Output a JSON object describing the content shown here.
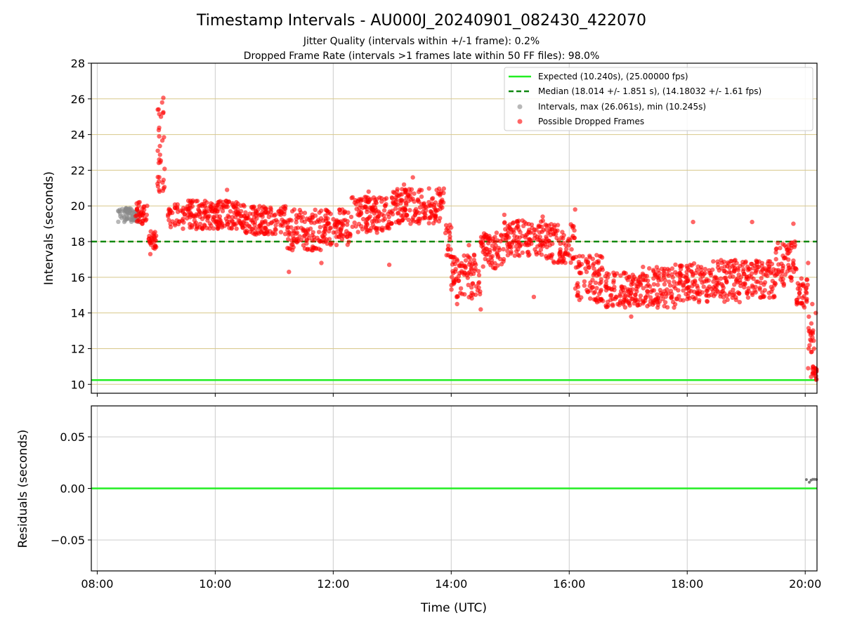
{
  "chart_data": [
    {
      "type": "scatter",
      "title": "Timestamp Intervals - AU000J_20240901_082430_422070",
      "subtitle_lines": [
        "Jitter Quality (intervals within +/-1 frame): 0.2%",
        "Dropped Frame Rate (intervals >1 frames late within 50 FF files): 98.0%"
      ],
      "xlabel": "",
      "ylabel": "Intervals (seconds)",
      "x_unit": "hours UTC",
      "xlim": [
        7.9,
        20.2
      ],
      "ylim": [
        9.5,
        28
      ],
      "yticks": [
        10,
        12,
        14,
        16,
        18,
        20,
        22,
        24,
        26,
        28
      ],
      "ytick_labels": [
        "10",
        "12",
        "14",
        "16",
        "18",
        "20",
        "22",
        "24",
        "26",
        "28"
      ],
      "grid": {
        "x": "gray",
        "y": "khaki"
      },
      "legend_placement": "top-right",
      "reference_lines": [
        {
          "name": "Expected (10.240s), (25.00000 fps)",
          "y": 10.24,
          "color": "#22ee22",
          "style": "solid"
        },
        {
          "name": "Median (18.014 +/- 1.851 s), (14.18032 +/- 1.61 fps)",
          "y": 18.0,
          "color": "#118811",
          "style": "dashed"
        }
      ],
      "series": [
        {
          "name": "Intervals, max (26.061s), min (10.245s)",
          "color": "#888888",
          "band_segments": [
            {
              "x": [
                8.35,
                8.7
              ],
              "y": [
                19.1,
                19.9
              ]
            }
          ]
        },
        {
          "name": "Possible Dropped Frames",
          "color": "#ff0000",
          "band_segments": [
            {
              "x": [
                8.65,
                8.85
              ],
              "y": [
                19.0,
                20.3
              ]
            },
            {
              "x": [
                8.85,
                9.0
              ],
              "y": [
                17.6,
                18.6
              ]
            },
            {
              "x": [
                9.0,
                9.15
              ],
              "y": [
                20.5,
                26.0
              ]
            },
            {
              "x": [
                9.2,
                10.5
              ],
              "y": [
                18.7,
                20.3
              ]
            },
            {
              "x": [
                10.5,
                11.2
              ],
              "y": [
                18.4,
                20.0
              ]
            },
            {
              "x": [
                11.2,
                11.8
              ],
              "y": [
                17.5,
                19.8
              ]
            },
            {
              "x": [
                11.8,
                12.3
              ],
              "y": [
                17.8,
                19.8
              ]
            },
            {
              "x": [
                12.3,
                13.0
              ],
              "y": [
                18.5,
                20.5
              ]
            },
            {
              "x": [
                13.0,
                13.9
              ],
              "y": [
                19.0,
                21.0
              ]
            },
            {
              "x": [
                13.9,
                14.0
              ],
              "y": [
                17.0,
                19.0
              ]
            },
            {
              "x": [
                14.0,
                14.5
              ],
              "y": [
                14.8,
                17.3
              ]
            },
            {
              "x": [
                14.5,
                14.9
              ],
              "y": [
                16.5,
                18.5
              ]
            },
            {
              "x": [
                14.9,
                15.6
              ],
              "y": [
                17.2,
                19.2
              ]
            },
            {
              "x": [
                15.6,
                16.1
              ],
              "y": [
                16.8,
                19.0
              ]
            },
            {
              "x": [
                16.1,
                16.6
              ],
              "y": [
                14.6,
                17.4
              ]
            },
            {
              "x": [
                16.6,
                17.2
              ],
              "y": [
                14.3,
                16.3
              ]
            },
            {
              "x": [
                17.2,
                17.8
              ],
              "y": [
                14.3,
                16.6
              ]
            },
            {
              "x": [
                17.8,
                18.4
              ],
              "y": [
                14.6,
                16.8
              ]
            },
            {
              "x": [
                18.4,
                19.0
              ],
              "y": [
                14.6,
                17.0
              ]
            },
            {
              "x": [
                19.0,
                19.5
              ],
              "y": [
                14.8,
                17.0
              ]
            },
            {
              "x": [
                19.5,
                19.85
              ],
              "y": [
                15.5,
                18.0
              ]
            },
            {
              "x": [
                19.85,
                20.05
              ],
              "y": [
                14.3,
                16.0
              ]
            },
            {
              "x": [
                20.05,
                20.15
              ],
              "y": [
                11.5,
                13.8
              ]
            },
            {
              "x": [
                20.1,
                20.2
              ],
              "y": [
                10.25,
                11.0
              ]
            }
          ],
          "points": [
            {
              "x": 9.12,
              "y": 26.06
            },
            {
              "x": 9.1,
              "y": 25.8
            },
            {
              "x": 9.08,
              "y": 25.0
            },
            {
              "x": 9.05,
              "y": 23.9
            },
            {
              "x": 9.05,
              "y": 22.6
            },
            {
              "x": 9.03,
              "y": 21.1
            },
            {
              "x": 13.35,
              "y": 21.6
            },
            {
              "x": 13.2,
              "y": 21.2
            },
            {
              "x": 10.2,
              "y": 20.9
            },
            {
              "x": 12.6,
              "y": 20.8
            },
            {
              "x": 11.25,
              "y": 16.3
            },
            {
              "x": 11.8,
              "y": 16.8
            },
            {
              "x": 12.95,
              "y": 16.7
            },
            {
              "x": 14.1,
              "y": 14.5
            },
            {
              "x": 14.5,
              "y": 14.2
            },
            {
              "x": 14.9,
              "y": 19.5
            },
            {
              "x": 15.4,
              "y": 14.9
            },
            {
              "x": 16.1,
              "y": 19.8
            },
            {
              "x": 17.05,
              "y": 13.8
            },
            {
              "x": 18.1,
              "y": 19.1
            },
            {
              "x": 19.1,
              "y": 19.1
            },
            {
              "x": 19.8,
              "y": 19.0
            },
            {
              "x": 20.05,
              "y": 16.8
            },
            {
              "x": 20.12,
              "y": 14.5
            },
            {
              "x": 20.18,
              "y": 14.0
            },
            {
              "x": 20.15,
              "y": 12.0
            },
            {
              "x": 20.05,
              "y": 10.9
            },
            {
              "x": 8.9,
              "y": 17.3
            },
            {
              "x": 14.3,
              "y": 17.8
            },
            {
              "x": 15.55,
              "y": 19.4
            }
          ]
        }
      ]
    },
    {
      "type": "scatter",
      "title": "",
      "xlabel": "Time (UTC)",
      "ylabel": "Residuals (seconds)",
      "xlim": [
        7.9,
        20.2
      ],
      "ylim": [
        -0.08,
        0.08
      ],
      "xticks": [
        8,
        10,
        12,
        14,
        16,
        18,
        20
      ],
      "xtick_labels": [
        "08:00",
        "10:00",
        "12:00",
        "14:00",
        "16:00",
        "18:00",
        "20:00"
      ],
      "yticks": [
        -0.05,
        0.0,
        0.05
      ],
      "ytick_labels": [
        "−0.05",
        "0.00",
        "0.05"
      ],
      "grid": {
        "x": "gray",
        "y": "gray"
      },
      "reference_lines": [
        {
          "y": 0.0,
          "color": "#22ee22",
          "style": "solid"
        }
      ],
      "series": [
        {
          "color": "#777777",
          "points": [
            {
              "x": 20.02,
              "y": 0.0085
            },
            {
              "x": 20.07,
              "y": 0.006
            },
            {
              "x": 20.1,
              "y": 0.008
            },
            {
              "x": 20.13,
              "y": 0.0088
            },
            {
              "x": 20.16,
              "y": 0.0088
            },
            {
              "x": 20.19,
              "y": 0.0086
            }
          ]
        }
      ]
    }
  ]
}
